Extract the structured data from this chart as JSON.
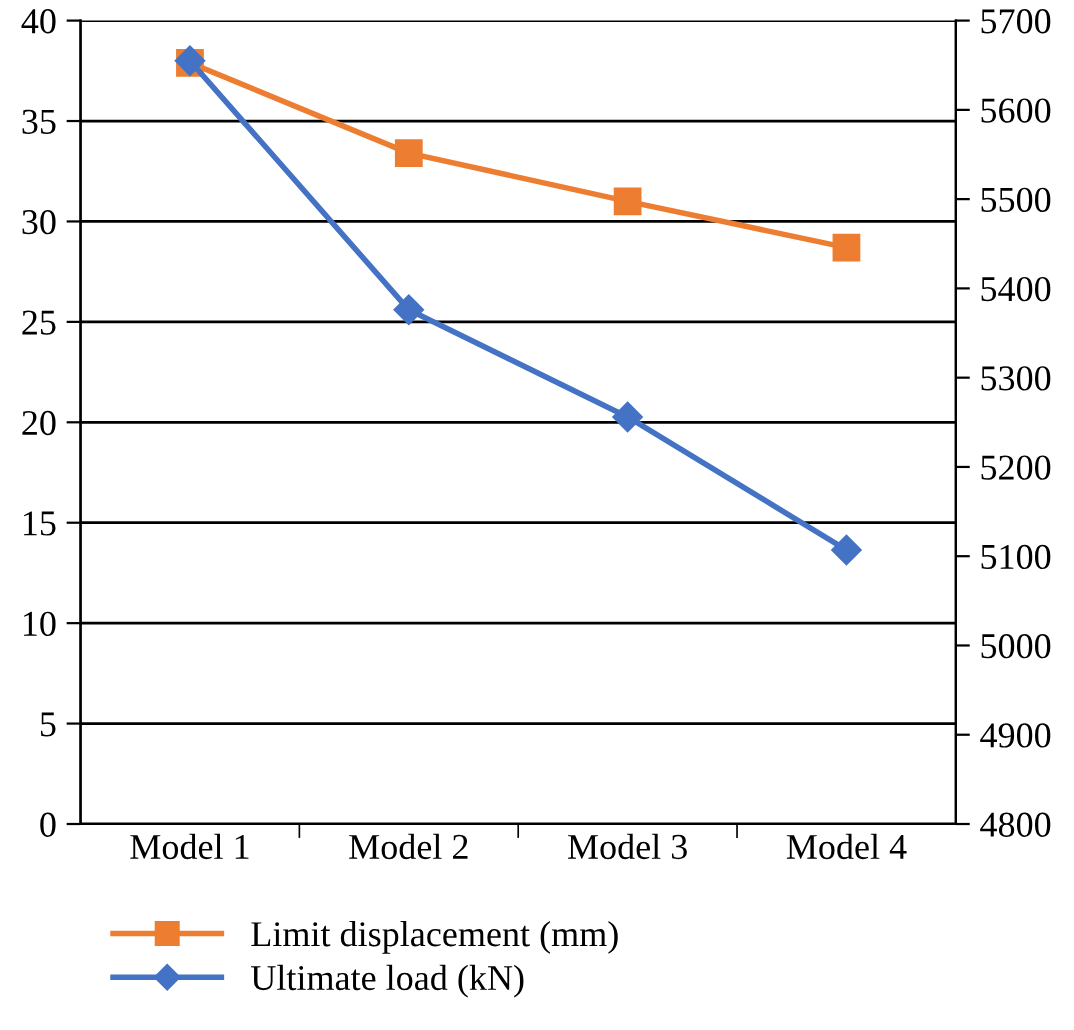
{
  "chart_data": {
    "type": "line",
    "categories": [
      "Model 1",
      "Model 2",
      "Model 3",
      "Model 4"
    ],
    "series": [
      {
        "name": "Limit displacement (mm)",
        "color": "#ed7d31",
        "values": [
          37.9,
          33.4,
          31.0,
          28.7
        ],
        "marker": "square"
      },
      {
        "name": "Ultimate load (kN)",
        "color": "#4472c4",
        "values": [
          5655,
          5376,
          5256,
          5107
        ],
        "marker": "diamond",
        "axis": "y2"
      }
    ],
    "ylim": [
      0,
      40
    ],
    "yticks": [
      0,
      5,
      10,
      15,
      20,
      25,
      30,
      35,
      40
    ],
    "y2lim": [
      4800,
      5700
    ],
    "y2ticks": [
      4800,
      4900,
      5000,
      5100,
      5200,
      5300,
      5400,
      5500,
      5600,
      5700
    ],
    "grid": "y",
    "legend": "bottom",
    "line_style": "solid"
  }
}
